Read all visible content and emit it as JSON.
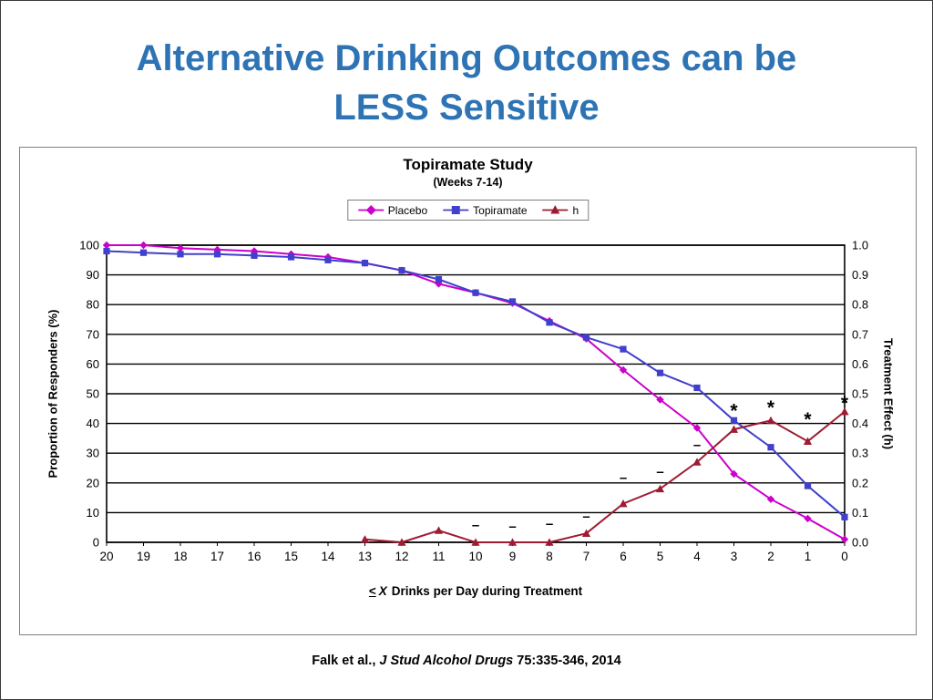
{
  "slide": {
    "title_line1": "Alternative Drinking Outcomes can be",
    "title_line2": "LESS Sensitive",
    "title_color": "#2E74B5"
  },
  "citation": {
    "pre": "Falk  et al.,",
    "journal": "J Stud Alcohol Drugs",
    "post": "75:335-346, 2014"
  },
  "chart_data": {
    "type": "line",
    "title": "Topiramate Study",
    "subtitle": "(Weeks 7-14)",
    "x_label": {
      "lte": "<",
      "var": "X",
      "rest": "Drinks per Day during Treatment"
    },
    "x": [
      20,
      19,
      18,
      17,
      16,
      15,
      14,
      13,
      12,
      11,
      10,
      9,
      8,
      7,
      6,
      5,
      4,
      3,
      2,
      1,
      0
    ],
    "x_range": [
      20,
      0
    ],
    "y_left": {
      "label": "Proportion of Responders (%)",
      "min": 0,
      "max": 100,
      "step": 10
    },
    "y_right": {
      "label": "Treatment Effect (h)",
      "min": 0,
      "max": 1,
      "step": 0.1
    },
    "grid": "horizontal-black",
    "legend_position": "top-center",
    "series": [
      {
        "name": "Placebo",
        "color": "#CC00CC",
        "marker": "diamond",
        "axis": "left",
        "values": [
          100,
          100,
          99,
          98.5,
          98,
          97,
          96,
          94,
          91.5,
          87,
          84,
          80.5,
          74.5,
          68.5,
          58,
          48,
          38.5,
          23,
          14.5,
          8,
          1
        ]
      },
      {
        "name": "Topiramate",
        "color": "#4040CC",
        "marker": "square",
        "axis": "left",
        "values": [
          98,
          97.5,
          97,
          97,
          96.5,
          96,
          95,
          94,
          91.5,
          88.5,
          84,
          81,
          74,
          69,
          65,
          57,
          52,
          41,
          32,
          19,
          8.5
        ]
      },
      {
        "name": "h",
        "color": "#9E1B32",
        "marker": "triangle",
        "axis": "right",
        "values": [
          null,
          null,
          null,
          null,
          null,
          null,
          null,
          0.01,
          0,
          0.04,
          0,
          0,
          0,
          0.03,
          0.13,
          0.18,
          0.27,
          0.38,
          0.41,
          0.34,
          0.44
        ]
      }
    ],
    "annotations": [
      {
        "x": 10,
        "y": 0.055,
        "symbol": "–"
      },
      {
        "x": 9,
        "y": 0.05,
        "symbol": "–"
      },
      {
        "x": 8,
        "y": 0.06,
        "symbol": "–"
      },
      {
        "x": 7,
        "y": 0.085,
        "symbol": "–"
      },
      {
        "x": 6,
        "y": 0.215,
        "symbol": "–"
      },
      {
        "x": 5,
        "y": 0.235,
        "symbol": "–"
      },
      {
        "x": 4,
        "y": 0.325,
        "symbol": "–"
      },
      {
        "x": 3,
        "y": 0.45,
        "symbol": "*"
      },
      {
        "x": 2,
        "y": 0.46,
        "symbol": "*"
      },
      {
        "x": 1,
        "y": 0.42,
        "symbol": "*"
      },
      {
        "x": 0,
        "y": 0.475,
        "symbol": "*"
      }
    ]
  }
}
